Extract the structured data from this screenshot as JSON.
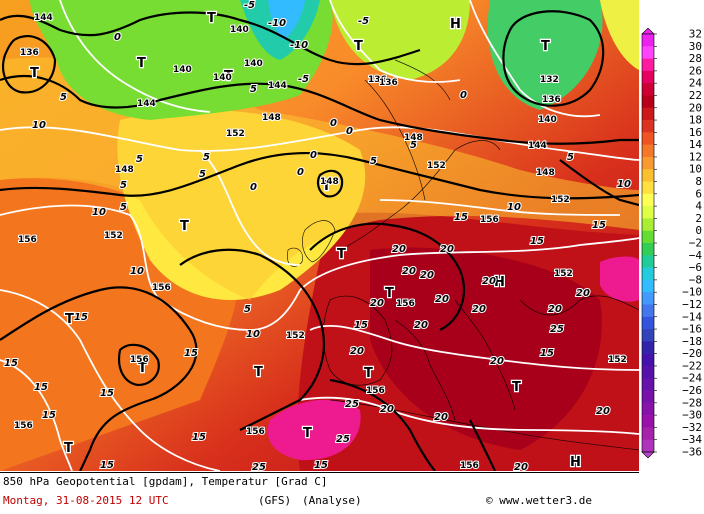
{
  "legend": {
    "colors": [
      "#ee22ee",
      "#ff44ff",
      "#ff1aa0",
      "#e60060",
      "#cc0033",
      "#b8001a",
      "#cc1a1a",
      "#dd3322",
      "#ee5522",
      "#f5772a",
      "#f99a30",
      "#fcbf30",
      "#ffe040",
      "#ffff55",
      "#ddff44",
      "#aaee33",
      "#66dd33",
      "#33cc55",
      "#22cc99",
      "#22ccdd",
      "#33bbff",
      "#4499ff",
      "#4477ee",
      "#3355dd",
      "#3344bb",
      "#3322aa",
      "#4411aa",
      "#5511aa",
      "#6611aa",
      "#7711aa",
      "#8811aa",
      "#9911aa",
      "#a622aa",
      "#b033bb",
      "#bb44cc"
    ],
    "labels": [
      "32",
      "30",
      "28",
      "26",
      "24",
      "22",
      "20",
      "18",
      "16",
      "14",
      "12",
      "10",
      "8",
      "6",
      "4",
      "2",
      "0",
      "−2",
      "−4",
      "−6",
      "−8",
      "−10",
      "−12",
      "−14",
      "−16",
      "−18",
      "−20",
      "−22",
      "−24",
      "−26",
      "−28",
      "−30",
      "−32",
      "−34",
      "−36"
    ]
  },
  "map": {
    "geopotential_labels": [
      "144",
      "140",
      "136",
      "140",
      "144",
      "140",
      "144",
      "136",
      "132",
      "136",
      "140",
      "144",
      "148",
      "152",
      "148",
      "148",
      "152",
      "156",
      "152",
      "156",
      "156",
      "152",
      "152",
      "156",
      "156",
      "156",
      "156",
      "156",
      "152",
      "156",
      "148",
      "148",
      "152",
      "136",
      "140"
    ],
    "temperature_labels": [
      "-5",
      "-10",
      "-5",
      "-5",
      "0",
      "5",
      "0",
      "10",
      "5",
      "0",
      "0",
      "0",
      "0",
      "5",
      "10",
      "5",
      "5",
      "0",
      "10",
      "5",
      "5",
      "10",
      "5",
      "15",
      "10",
      "15",
      "20",
      "20",
      "20",
      "20",
      "20",
      "20",
      "20",
      "20",
      "20",
      "25",
      "20",
      "15",
      "15",
      "15",
      "15",
      "15",
      "15",
      "20",
      "25",
      "20",
      "20",
      "15",
      "20",
      "25",
      "20",
      "20",
      "15",
      "15",
      "20",
      "15",
      "25",
      "-10",
      "5",
      "5",
      "5",
      "10",
      "15",
      "15"
    ],
    "high_markers": [
      "H",
      "H",
      "H"
    ],
    "low_markers": [
      "T",
      "T",
      "T",
      "T",
      "T",
      "T",
      "T",
      "T",
      "T",
      "T",
      "T",
      "T",
      "T",
      "T",
      "T",
      "T",
      "T"
    ]
  },
  "footer": {
    "product": "850 hPa Geopotential [gpdam], Temperatur [Grad C]",
    "date": "Montag, 31-08-2015  12 UTC",
    "model": "(GFS)",
    "run_type": "(Analyse)",
    "copyright": "© www.wetter3.de"
  }
}
